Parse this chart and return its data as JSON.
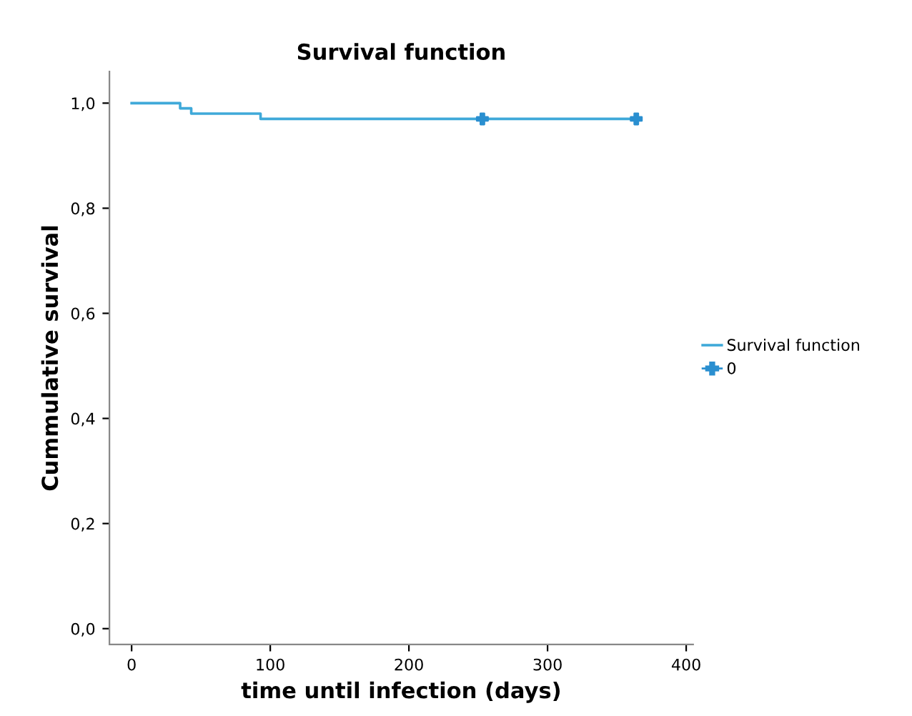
{
  "chart_data": {
    "type": "step",
    "title": "Survival function",
    "xlabel": "time until infection (days)",
    "ylabel": "Cummulative survival",
    "series": [
      {
        "name": "Survival function",
        "color": "#3fa9d9",
        "x": [
          0,
          35,
          43,
          93,
          364
        ],
        "values": [
          1.0,
          0.99,
          0.98,
          0.97,
          0.97
        ]
      },
      {
        "name": "0",
        "type": "scatter",
        "color": "#2a8fd0",
        "marker": "cross",
        "x": [
          253,
          364
        ],
        "values": [
          0.97,
          0.97
        ]
      }
    ],
    "xlim": [
      -16,
      405
    ],
    "ylim": [
      -0.03,
      1.06
    ],
    "xticks": [
      0,
      100,
      200,
      300,
      400
    ],
    "yticks": [
      {
        "value": 0.0,
        "label": "0,0"
      },
      {
        "value": 0.2,
        "label": "0,2"
      },
      {
        "value": 0.4,
        "label": "0,4"
      },
      {
        "value": 0.6,
        "label": "0,6"
      },
      {
        "value": 0.8,
        "label": "0,8"
      },
      {
        "value": 1.0,
        "label": "1,0"
      }
    ],
    "legend": "right",
    "grid": false
  }
}
